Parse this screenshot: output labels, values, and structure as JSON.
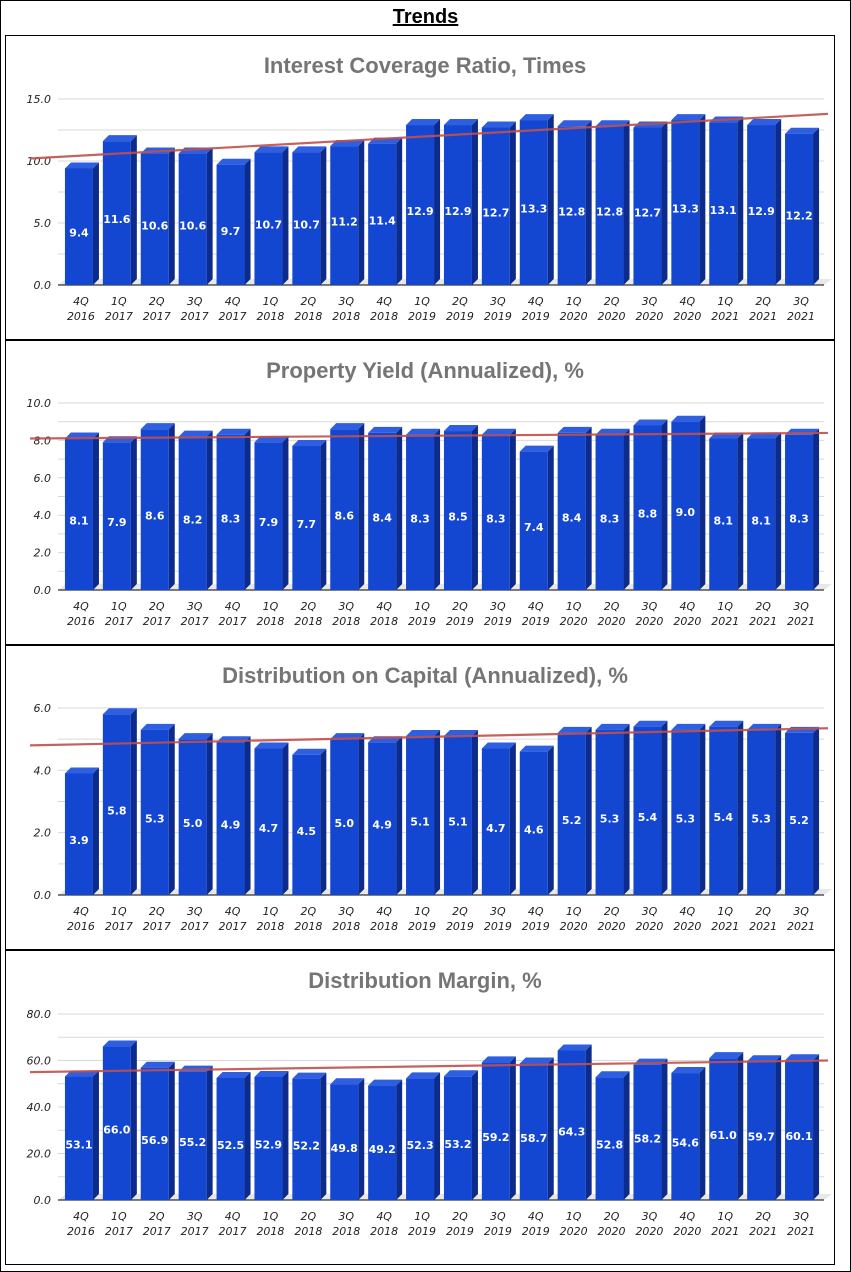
{
  "page_title": "Trends",
  "colors": {
    "bar_front": "#1447d1",
    "bar_side": "#0c2b8a",
    "bar_top": "#2d5fe0",
    "trend": "#c0504d",
    "grid": "#d9d9d9"
  },
  "chart_data": [
    {
      "type": "bar",
      "title": "Interest Coverage Ratio, Times",
      "categories": [
        "4Q 2016",
        "1Q 2017",
        "2Q 2017",
        "3Q 2017",
        "4Q 2017",
        "1Q 2018",
        "2Q 2018",
        "3Q 2018",
        "4Q 2018",
        "1Q 2019",
        "2Q 2019",
        "3Q 2019",
        "4Q 2019",
        "1Q 2020",
        "2Q 2020",
        "3Q 2020",
        "4Q 2020",
        "1Q 2021",
        "2Q 2021",
        "3Q 2021"
      ],
      "values": [
        9.4,
        11.6,
        10.6,
        10.6,
        9.7,
        10.7,
        10.7,
        11.2,
        11.4,
        12.9,
        12.9,
        12.7,
        13.3,
        12.8,
        12.8,
        12.7,
        13.3,
        13.1,
        12.9,
        12.2
      ],
      "value_labels": [
        "9.4",
        "11.6",
        "10.6",
        "10.6",
        "9.7",
        "10.7",
        "10.7",
        "11.2",
        "11.4",
        "12.9",
        "12.9",
        "12.7",
        "13.3",
        "12.8",
        "12.8",
        "12.7",
        "13.3",
        "13.1",
        "12.9",
        "12.2"
      ],
      "ylim": [
        0,
        15
      ],
      "y_ticks": [
        "0.0",
        "5.0",
        "10.0",
        "15.0"
      ],
      "trendline": [
        10.2,
        13.8
      ]
    },
    {
      "type": "bar",
      "title": "Property Yield (Annualized), %",
      "categories": [
        "4Q 2016",
        "1Q 2017",
        "2Q 2017",
        "3Q 2017",
        "4Q 2017",
        "1Q 2018",
        "2Q 2018",
        "3Q 2018",
        "4Q 2018",
        "1Q 2019",
        "2Q 2019",
        "3Q 2019",
        "4Q 2019",
        "1Q 2020",
        "2Q 2020",
        "3Q 2020",
        "4Q 2020",
        "1Q 2021",
        "2Q 2021",
        "3Q 2021"
      ],
      "values": [
        8.1,
        7.9,
        8.6,
        8.2,
        8.3,
        7.9,
        7.7,
        8.6,
        8.4,
        8.3,
        8.5,
        8.3,
        7.4,
        8.4,
        8.3,
        8.8,
        9.0,
        8.1,
        8.1,
        8.3
      ],
      "value_labels": [
        "8.1",
        "7.9",
        "8.6",
        "8.2",
        "8.3",
        "7.9",
        "7.7",
        "8.6",
        "8.4",
        "8.3",
        "8.5",
        "8.3",
        "7.4",
        "8.4",
        "8.3",
        "8.8",
        "9.0",
        "8.1",
        "8.1",
        "8.3"
      ],
      "ylim": [
        0,
        10
      ],
      "y_ticks": [
        "0.0",
        "2.0",
        "4.0",
        "6.0",
        "8.0",
        "10.0"
      ],
      "trendline": [
        8.1,
        8.4
      ]
    },
    {
      "type": "bar",
      "title": "Distribution on Capital (Annualized), %",
      "categories": [
        "4Q 2016",
        "1Q 2017",
        "2Q 2017",
        "3Q 2017",
        "4Q 2017",
        "1Q 2018",
        "2Q 2018",
        "3Q 2018",
        "4Q 2018",
        "1Q 2019",
        "2Q 2019",
        "3Q 2019",
        "4Q 2019",
        "1Q 2020",
        "2Q 2020",
        "3Q 2020",
        "4Q 2020",
        "1Q 2021",
        "2Q 2021",
        "3Q 2021"
      ],
      "values": [
        3.9,
        5.8,
        5.3,
        5.0,
        4.9,
        4.7,
        4.5,
        5.0,
        4.9,
        5.1,
        5.1,
        4.7,
        4.6,
        5.2,
        5.3,
        5.4,
        5.3,
        5.4,
        5.3,
        5.2
      ],
      "value_labels": [
        "3.9",
        "5.8",
        "5.3",
        "5.0",
        "4.9",
        "4.7",
        "4.5",
        "5.0",
        "4.9",
        "5.1",
        "5.1",
        "4.7",
        "4.6",
        "5.2",
        "5.3",
        "5.4",
        "5.3",
        "5.4",
        "5.3",
        "5.2"
      ],
      "ylim": [
        0,
        6
      ],
      "y_ticks": [
        "0.0",
        "2.0",
        "4.0",
        "6.0"
      ],
      "trendline": [
        4.8,
        5.35
      ]
    },
    {
      "type": "bar",
      "title": "Distribution Margin, %",
      "categories": [
        "4Q 2016",
        "1Q 2017",
        "2Q 2017",
        "3Q 2017",
        "4Q 2017",
        "1Q 2018",
        "2Q 2018",
        "3Q 2018",
        "4Q 2018",
        "1Q 2019",
        "2Q 2019",
        "3Q 2019",
        "4Q 2019",
        "1Q 2020",
        "2Q 2020",
        "3Q 2020",
        "4Q 2020",
        "1Q 2021",
        "2Q 2021",
        "3Q 2021"
      ],
      "values": [
        53.1,
        66.0,
        56.9,
        55.2,
        52.5,
        52.9,
        52.2,
        49.8,
        49.2,
        52.3,
        53.2,
        59.2,
        58.7,
        64.3,
        52.8,
        58.2,
        54.6,
        61.0,
        59.7,
        60.1
      ],
      "value_labels": [
        "53.1",
        "66.0",
        "56.9",
        "55.2",
        "52.5",
        "52.9",
        "52.2",
        "49.8",
        "49.2",
        "52.3",
        "53.2",
        "59.2",
        "58.7",
        "64.3",
        "52.8",
        "58.2",
        "54.6",
        "61.0",
        "59.7",
        "60.1"
      ],
      "ylim": [
        0,
        80
      ],
      "y_ticks": [
        "0.0",
        "20.0",
        "40.0",
        "60.0",
        "80.0"
      ],
      "trendline": [
        55.0,
        60.0
      ]
    }
  ]
}
